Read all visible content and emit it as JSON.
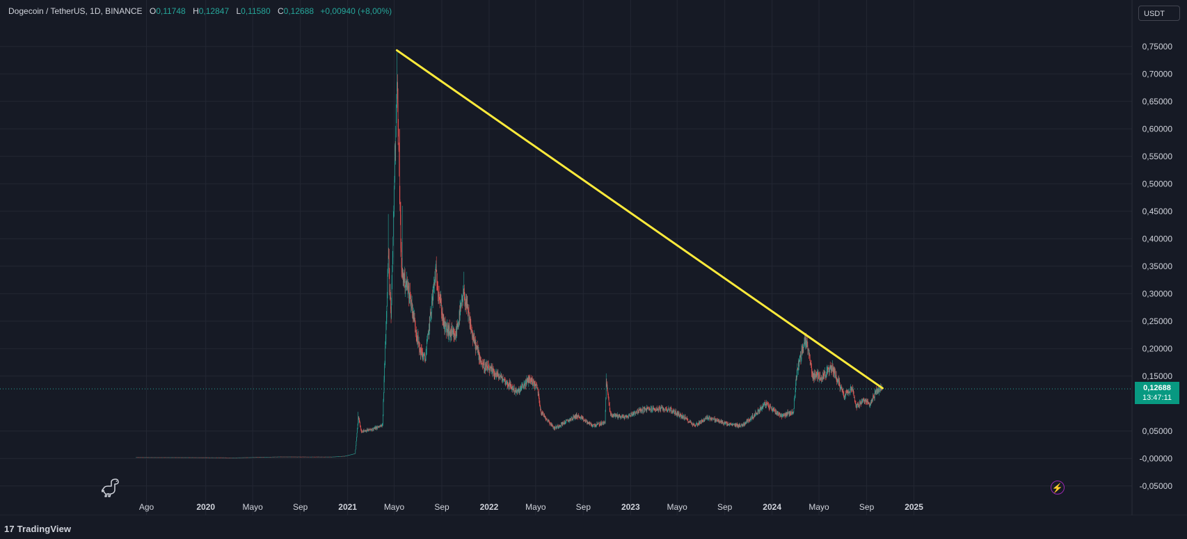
{
  "header": {
    "symbol": "Dogecoin / TetherUS, 1D, BINANCE",
    "open_label": "O",
    "open_value": "0,11748",
    "high_label": "H",
    "high_value": "0,12847",
    "low_label": "L",
    "low_value": "0,11580",
    "close_label": "C",
    "close_value": "0,12688",
    "change": "+0,00940 (+8,00%)"
  },
  "currency_button": "USDT",
  "price_badge": {
    "price": "0,12688",
    "countdown": "13:47:11"
  },
  "branding": {
    "logo_mark": "17",
    "logo_text": "TradingView"
  },
  "icons": {
    "dino": "dinosaur-icon",
    "flash": "lightning-icon"
  },
  "colors": {
    "background": "#161a25",
    "grid": "#232733",
    "up": "#26a69a",
    "down": "#ef5350",
    "trendline": "#ffeb3b",
    "price_line": "#26a69a",
    "badge": "#089981"
  },
  "chart_data": {
    "type": "candlestick",
    "title": "Dogecoin / TetherUS, 1D, BINANCE",
    "ylim": [
      -0.07,
      0.8
    ],
    "y_ticks": [
      {
        "value": 0.75,
        "label": "0,75000"
      },
      {
        "value": 0.7,
        "label": "0,70000"
      },
      {
        "value": 0.65,
        "label": "0,65000"
      },
      {
        "value": 0.6,
        "label": "0,60000"
      },
      {
        "value": 0.55,
        "label": "0,55000"
      },
      {
        "value": 0.5,
        "label": "0,50000"
      },
      {
        "value": 0.45,
        "label": "0,45000"
      },
      {
        "value": 0.4,
        "label": "0,40000"
      },
      {
        "value": 0.35,
        "label": "0,35000"
      },
      {
        "value": 0.3,
        "label": "0,30000"
      },
      {
        "value": 0.25,
        "label": "0,25000"
      },
      {
        "value": 0.2,
        "label": "0,20000"
      },
      {
        "value": 0.15,
        "label": "0,15000"
      },
      {
        "value": 0.05,
        "label": "0,05000"
      },
      {
        "value": 0.0,
        "label": "-0,00000"
      },
      {
        "value": -0.05,
        "label": "-0,05000"
      }
    ],
    "x_ticks": [
      {
        "date": "2019-08-01",
        "label": "Ago",
        "bold": false
      },
      {
        "date": "2020-01-01",
        "label": "2020",
        "bold": true
      },
      {
        "date": "2020-05-01",
        "label": "Mayo",
        "bold": false
      },
      {
        "date": "2020-09-01",
        "label": "Sep",
        "bold": false
      },
      {
        "date": "2021-01-01",
        "label": "2021",
        "bold": true
      },
      {
        "date": "2021-05-01",
        "label": "Mayo",
        "bold": false
      },
      {
        "date": "2021-09-01",
        "label": "Sep",
        "bold": false
      },
      {
        "date": "2022-01-01",
        "label": "2022",
        "bold": true
      },
      {
        "date": "2022-05-01",
        "label": "Mayo",
        "bold": false
      },
      {
        "date": "2022-09-01",
        "label": "Sep",
        "bold": false
      },
      {
        "date": "2023-01-01",
        "label": "2023",
        "bold": true
      },
      {
        "date": "2023-05-01",
        "label": "Mayo",
        "bold": false
      },
      {
        "date": "2023-09-01",
        "label": "Sep",
        "bold": false
      },
      {
        "date": "2024-01-01",
        "label": "2024",
        "bold": true
      },
      {
        "date": "2024-05-01",
        "label": "Mayo",
        "bold": false
      },
      {
        "date": "2024-09-01",
        "label": "Sep",
        "bold": false
      },
      {
        "date": "2025-01-01",
        "label": "2025",
        "bold": true
      }
    ],
    "current_price": 0.12688,
    "price_path": [
      [
        "2019-07-05",
        0.0022
      ],
      [
        "2019-12-01",
        0.002
      ],
      [
        "2020-03-15",
        0.0016
      ],
      [
        "2020-07-10",
        0.0032
      ],
      [
        "2020-11-20",
        0.003
      ],
      [
        "2020-12-25",
        0.0045
      ],
      [
        "2021-01-20",
        0.009
      ],
      [
        "2021-01-29",
        0.075
      ],
      [
        "2021-02-05",
        0.05
      ],
      [
        "2021-03-01",
        0.052
      ],
      [
        "2021-04-01",
        0.06
      ],
      [
        "2021-04-16",
        0.37
      ],
      [
        "2021-04-23",
        0.25
      ],
      [
        "2021-05-08",
        0.7
      ],
      [
        "2021-05-20",
        0.34
      ],
      [
        "2021-06-10",
        0.3
      ],
      [
        "2021-07-05",
        0.2
      ],
      [
        "2021-07-20",
        0.18
      ],
      [
        "2021-08-16",
        0.34
      ],
      [
        "2021-09-07",
        0.24
      ],
      [
        "2021-10-05",
        0.22
      ],
      [
        "2021-10-28",
        0.3
      ],
      [
        "2021-11-20",
        0.22
      ],
      [
        "2021-12-15",
        0.17
      ],
      [
        "2022-01-05",
        0.16
      ],
      [
        "2022-02-05",
        0.145
      ],
      [
        "2022-03-15",
        0.12
      ],
      [
        "2022-04-15",
        0.145
      ],
      [
        "2022-05-05",
        0.13
      ],
      [
        "2022-05-15",
        0.085
      ],
      [
        "2022-06-18",
        0.055
      ],
      [
        "2022-08-15",
        0.078
      ],
      [
        "2022-09-25",
        0.06
      ],
      [
        "2022-10-27",
        0.065
      ],
      [
        "2022-10-30",
        0.14
      ],
      [
        "2022-11-10",
        0.08
      ],
      [
        "2022-12-20",
        0.075
      ],
      [
        "2023-01-15",
        0.085
      ],
      [
        "2023-02-10",
        0.09
      ],
      [
        "2023-04-10",
        0.09
      ],
      [
        "2023-05-25",
        0.072
      ],
      [
        "2023-06-15",
        0.06
      ],
      [
        "2023-07-20",
        0.075
      ],
      [
        "2023-09-10",
        0.062
      ],
      [
        "2023-10-15",
        0.06
      ],
      [
        "2023-11-15",
        0.078
      ],
      [
        "2023-12-15",
        0.1
      ],
      [
        "2024-01-25",
        0.078
      ],
      [
        "2024-02-25",
        0.085
      ],
      [
        "2024-03-05",
        0.16
      ],
      [
        "2024-03-28",
        0.22
      ],
      [
        "2024-04-15",
        0.15
      ],
      [
        "2024-05-10",
        0.15
      ],
      [
        "2024-06-05",
        0.165
      ],
      [
        "2024-07-05",
        0.115
      ],
      [
        "2024-07-25",
        0.13
      ],
      [
        "2024-08-05",
        0.095
      ],
      [
        "2024-08-25",
        0.105
      ],
      [
        "2024-09-10",
        0.1
      ],
      [
        "2024-09-28",
        0.125
      ],
      [
        "2024-10-11",
        0.1269
      ]
    ],
    "spikes": [
      [
        "2021-01-28",
        0.085
      ],
      [
        "2021-04-16",
        0.445
      ],
      [
        "2021-05-08",
        0.74
      ],
      [
        "2021-05-15",
        0.6
      ],
      [
        "2021-05-22",
        0.46
      ],
      [
        "2021-08-16",
        0.35
      ],
      [
        "2021-10-28",
        0.34
      ],
      [
        "2022-10-30",
        0.155
      ],
      [
        "2024-03-28",
        0.228
      ]
    ],
    "trendline": {
      "start": {
        "date": "2021-05-08",
        "value": 0.743
      },
      "end": {
        "date": "2024-10-12",
        "value": 0.128
      }
    }
  }
}
